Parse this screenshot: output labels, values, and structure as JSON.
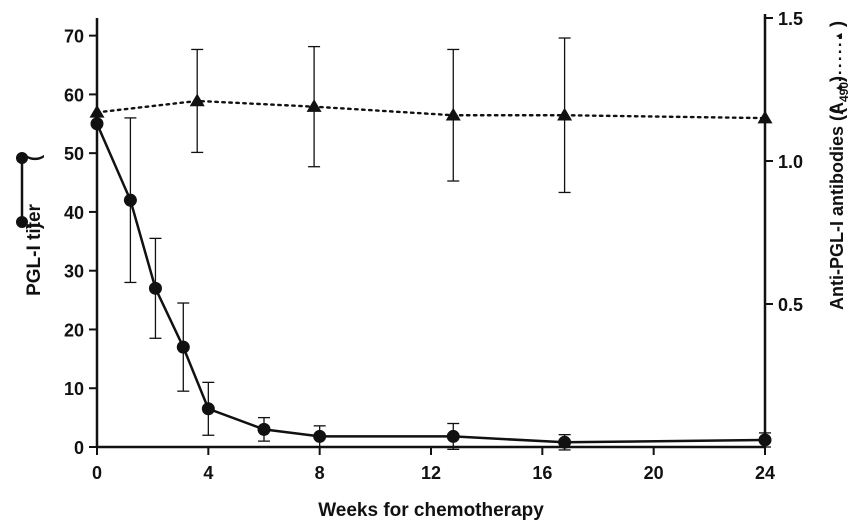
{
  "chart_data": {
    "type": "line",
    "xlabel": "Weeks for  chemotherapy",
    "ylabel_left": "PGL-I titer",
    "ylabel_right": "Anti-PGL-I antibodies (A",
    "ylabel_right_sub": "490",
    "x_ticks": [
      "0",
      "4",
      "8",
      "12",
      "16",
      "20",
      "24"
    ],
    "y_left_ticks": [
      "0",
      "10",
      "20",
      "30",
      "40",
      "50",
      "60",
      "70"
    ],
    "y_right_ticks": [
      "0.5",
      "1.0",
      "1.5"
    ],
    "xlim": [
      0,
      24
    ],
    "ylim_left": [
      0,
      73
    ],
    "ylim_right": [
      0,
      1.5
    ],
    "grid": false,
    "series": [
      {
        "axis": "left",
        "marker": "circle",
        "linestyle": "solid",
        "color": "#111111",
        "x": [
          0,
          1.2,
          2.1,
          3.1,
          4,
          6,
          8,
          12.8,
          16.8,
          24
        ],
        "y": [
          55,
          42,
          27,
          17,
          6.5,
          3,
          1.8,
          1.8,
          0.8,
          1.2
        ],
        "err": [
          null,
          14,
          8.5,
          7.5,
          4.5,
          2,
          1.8,
          2.2,
          1.3,
          1.2
        ]
      },
      {
        "axis": "right",
        "marker": "triangle",
        "linestyle": "dotted",
        "color": "#111111",
        "x": [
          0,
          3.6,
          7.8,
          12.8,
          16.8,
          24
        ],
        "y": [
          1.17,
          1.21,
          1.19,
          1.16,
          1.16,
          1.15
        ],
        "err": [
          null,
          0.18,
          0.21,
          0.23,
          0.27,
          null
        ]
      }
    ]
  }
}
